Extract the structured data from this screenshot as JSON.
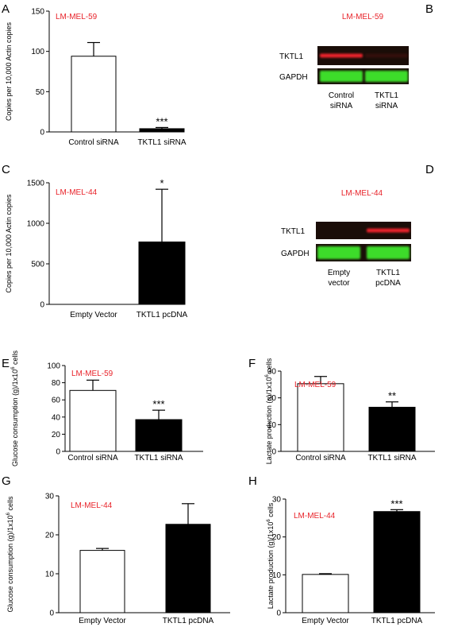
{
  "colors": {
    "accent_red": "#e8232a",
    "bar_black": "#000000",
    "bar_white": "#ffffff",
    "blot_green": "#3ddc2b",
    "blot_red": "#e8232a",
    "blot_background": "#1a0d08"
  },
  "chart_data": [
    {
      "panel": "A",
      "type": "bar",
      "cell_line": "LM-MEL-59",
      "ylabel": "Copies per 10,000 Actin copies",
      "categories": [
        "Control siRNA",
        "TKTL1 siRNA"
      ],
      "values": [
        94,
        4
      ],
      "errors": [
        17,
        1.5
      ],
      "fills": [
        "white",
        "black"
      ],
      "significance": [
        "",
        "***"
      ],
      "ylim": [
        0,
        150
      ],
      "yticks": [
        0,
        50,
        100,
        150
      ],
      "yticklabels": [
        "0",
        "50",
        "100",
        "150"
      ],
      "grid": false
    },
    {
      "panel": "C",
      "type": "bar",
      "cell_line": "LM-MEL-44",
      "ylabel": "Copies per 10,000 Actin copies",
      "categories": [
        "Empty Vector",
        "TKTL1 pcDNA"
      ],
      "values": [
        0,
        770
      ],
      "errors": [
        0,
        650
      ],
      "fills": [
        "white",
        "black"
      ],
      "significance": [
        "",
        "*"
      ],
      "ylim": [
        0,
        1500
      ],
      "yticks": [
        0,
        500,
        1000,
        1500
      ],
      "yticklabels": [
        "0",
        "500",
        "1000",
        "1500"
      ],
      "grid": false
    },
    {
      "panel": "E",
      "type": "bar",
      "cell_line": "LM-MEL-59",
      "ylabel_main": "Glucose consumption (g)/1x10",
      "ylabel_sup": "6",
      "ylabel_tail": " cells",
      "categories": [
        "Control siRNA",
        "TKTL1 siRNA"
      ],
      "values": [
        71,
        37
      ],
      "errors": [
        12,
        11
      ],
      "fills": [
        "white",
        "black"
      ],
      "significance": [
        "",
        "***"
      ],
      "ylim": [
        0,
        100
      ],
      "yticks": [
        0,
        20,
        40,
        60,
        80,
        100
      ],
      "yticklabels": [
        "0",
        "20",
        "40",
        "60",
        "80",
        "100"
      ],
      "grid": false
    },
    {
      "panel": "F",
      "type": "bar",
      "cell_line": "LM-MEL-59",
      "ylabel_main": "Lactate production (g)/1x10",
      "ylabel_sup": "6",
      "ylabel_tail": " cells",
      "categories": [
        "Control siRNA",
        "TKTL1 siRNA"
      ],
      "values": [
        25.3,
        16.5
      ],
      "errors": [
        2.7,
        2.0
      ],
      "fills": [
        "white",
        "black"
      ],
      "significance": [
        "",
        "**"
      ],
      "ylim": [
        0,
        30
      ],
      "yticks": [
        0,
        10,
        20,
        30
      ],
      "yticklabels": [
        "0",
        "10",
        "20",
        "30"
      ],
      "grid": false
    },
    {
      "panel": "G",
      "type": "bar",
      "cell_line": "LM-MEL-44",
      "ylabel_main": "Glucose consumption (g)/1x10",
      "ylabel_sup": "6",
      "ylabel_tail": " cells",
      "categories": [
        "Empty Vector",
        "TKTL1 pcDNA"
      ],
      "values": [
        16,
        22.7
      ],
      "errors": [
        0.5,
        5.3
      ],
      "fills": [
        "white",
        "black"
      ],
      "significance": [
        "",
        ""
      ],
      "ylim": [
        0,
        30
      ],
      "yticks": [
        0,
        10,
        20,
        30
      ],
      "yticklabels": [
        "0",
        "10",
        "20",
        "30"
      ],
      "grid": false
    },
    {
      "panel": "H",
      "type": "bar",
      "cell_line": "LM-MEL-44",
      "ylabel_main": "Lactate production (g)/1x10",
      "ylabel_sup": "6",
      "ylabel_tail": " cells",
      "categories": [
        "Empty Vector",
        "TKTL1 pcDNA"
      ],
      "values": [
        10.1,
        26.7
      ],
      "errors": [
        0.2,
        0.5
      ],
      "fills": [
        "white",
        "black"
      ],
      "significance": [
        "",
        "***"
      ],
      "ylim": [
        0,
        30
      ],
      "yticks": [
        0,
        10,
        20,
        30
      ],
      "yticklabels": [
        "0",
        "10",
        "20",
        "30"
      ],
      "grid": false
    }
  ],
  "blots": [
    {
      "panel": "B",
      "cell_line": "LM-MEL-59",
      "rows": [
        {
          "label": "TKTL1",
          "band_color": "red",
          "intensities": [
            1.0,
            0.12
          ]
        },
        {
          "label": "GAPDH",
          "band_color": "green",
          "intensities": [
            1.0,
            1.0
          ]
        }
      ],
      "lanes": [
        {
          "line1": "Control",
          "line2": "siRNA"
        },
        {
          "line1": "TKTL1",
          "line2": "siRNA"
        }
      ]
    },
    {
      "panel": "D",
      "cell_line": "LM-MEL-44",
      "rows": [
        {
          "label": "TKTL1",
          "band_color": "red",
          "intensities": [
            0.0,
            1.0
          ]
        },
        {
          "label": "GAPDH",
          "band_color": "green",
          "intensities": [
            1.0,
            1.0
          ]
        }
      ],
      "lanes": [
        {
          "line1": "Empty",
          "line2": "vector"
        },
        {
          "line1": "TKTL1",
          "line2": "pcDNA"
        }
      ]
    }
  ]
}
